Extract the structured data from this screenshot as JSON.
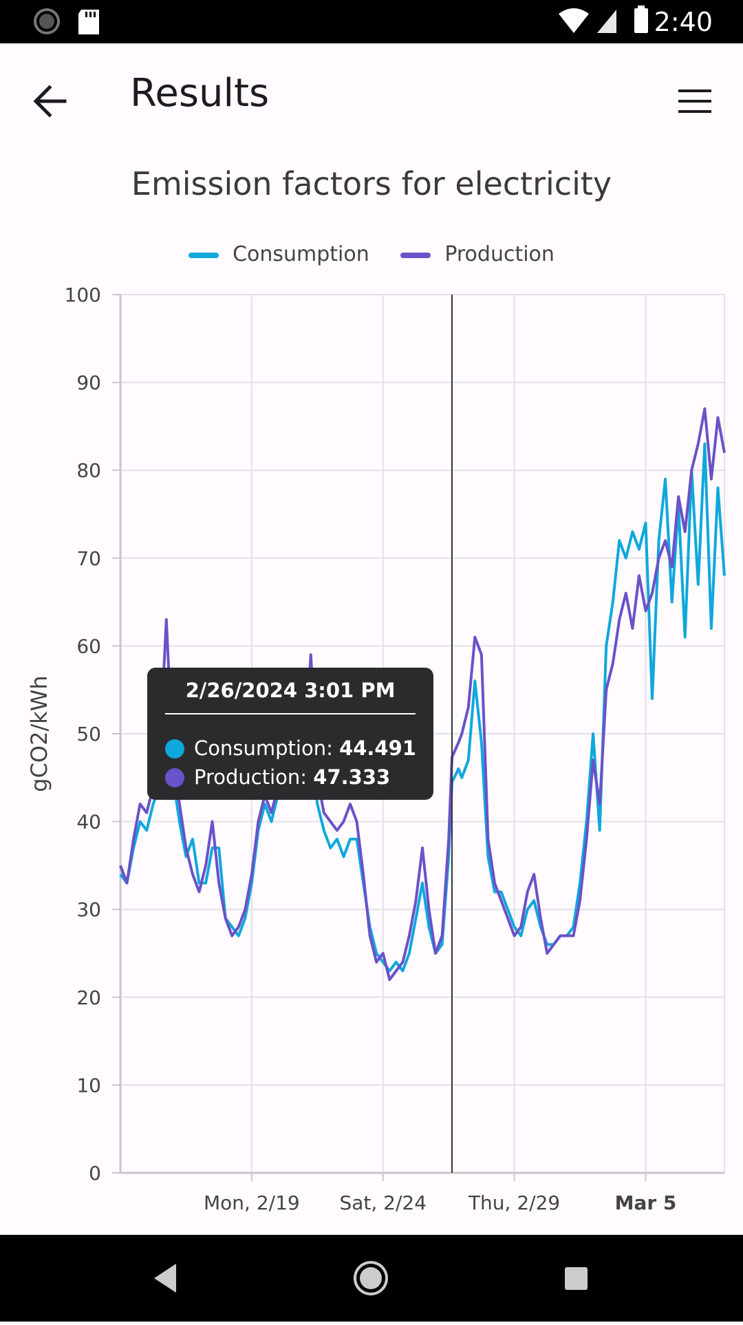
{
  "status_bar": {
    "time": "2:40"
  },
  "app_bar": {
    "title": "Results"
  },
  "chart_data": {
    "type": "line",
    "title": "Emission factors for electricity",
    "ylabel": "gCO2/kWh",
    "xlabel": "",
    "ylim": [
      0,
      100
    ],
    "yticks": [
      "0",
      "10",
      "20",
      "30",
      "40",
      "50",
      "60",
      "70",
      "80",
      "90",
      "100"
    ],
    "xticks": [
      {
        "date": "2024-02-19",
        "label": "Mon, 2/19",
        "bold": false
      },
      {
        "date": "2024-02-24",
        "label": "Sat, 2/24",
        "bold": false
      },
      {
        "date": "2024-02-29",
        "label": "Thu, 2/29",
        "bold": false
      },
      {
        "date": "2024-03-05",
        "label": "Mar 5",
        "bold": true
      }
    ],
    "xlim": [
      "2024-02-14",
      "2024-03-08"
    ],
    "grid": true,
    "legend_position": "top",
    "colors": {
      "consumption": "#0fa8dc",
      "production": "#6a52c8",
      "crosshair": "#333333"
    },
    "crosshair_date": "2024-02-26 15:01",
    "series": [
      {
        "name": "Consumption",
        "color": "#0fa8dc",
        "points": [
          [
            "2024-02-14 00:00",
            34
          ],
          [
            "2024-02-14 06:00",
            33
          ],
          [
            "2024-02-14 12:00",
            37
          ],
          [
            "2024-02-14 18:00",
            40
          ],
          [
            "2024-02-15 00:00",
            39
          ],
          [
            "2024-02-15 06:00",
            42
          ],
          [
            "2024-02-15 12:00",
            44
          ],
          [
            "2024-02-15 18:00",
            50
          ],
          [
            "2024-02-16 00:00",
            45
          ],
          [
            "2024-02-16 06:00",
            40
          ],
          [
            "2024-02-16 12:00",
            36
          ],
          [
            "2024-02-16 18:00",
            38
          ],
          [
            "2024-02-17 00:00",
            33
          ],
          [
            "2024-02-17 06:00",
            33
          ],
          [
            "2024-02-17 12:00",
            37
          ],
          [
            "2024-02-17 18:00",
            37
          ],
          [
            "2024-02-18 00:00",
            29
          ],
          [
            "2024-02-18 06:00",
            28
          ],
          [
            "2024-02-18 12:00",
            27
          ],
          [
            "2024-02-18 18:00",
            29
          ],
          [
            "2024-02-19 00:00",
            33
          ],
          [
            "2024-02-19 06:00",
            39
          ],
          [
            "2024-02-19 12:00",
            42
          ],
          [
            "2024-02-19 18:00",
            40
          ],
          [
            "2024-02-20 00:00",
            43
          ],
          [
            "2024-02-20 06:00",
            46
          ],
          [
            "2024-02-20 12:00",
            50
          ],
          [
            "2024-02-20 18:00",
            48
          ],
          [
            "2024-02-21 00:00",
            44
          ],
          [
            "2024-02-21 06:00",
            48
          ],
          [
            "2024-02-21 12:00",
            42
          ],
          [
            "2024-02-21 18:00",
            39
          ],
          [
            "2024-02-22 00:00",
            37
          ],
          [
            "2024-02-22 06:00",
            38
          ],
          [
            "2024-02-22 12:00",
            36
          ],
          [
            "2024-02-22 18:00",
            38
          ],
          [
            "2024-02-23 00:00",
            38
          ],
          [
            "2024-02-23 06:00",
            33
          ],
          [
            "2024-02-23 12:00",
            28
          ],
          [
            "2024-02-23 18:00",
            25
          ],
          [
            "2024-02-24 00:00",
            24
          ],
          [
            "2024-02-24 06:00",
            23
          ],
          [
            "2024-02-24 12:00",
            24
          ],
          [
            "2024-02-24 18:00",
            23
          ],
          [
            "2024-02-25 00:00",
            25
          ],
          [
            "2024-02-25 06:00",
            29
          ],
          [
            "2024-02-25 12:00",
            33
          ],
          [
            "2024-02-25 18:00",
            28
          ],
          [
            "2024-02-26 00:00",
            25
          ],
          [
            "2024-02-26 06:00",
            26
          ],
          [
            "2024-02-26 12:00",
            36
          ],
          [
            "2024-02-26 15:01",
            44.491
          ],
          [
            "2024-02-26 21:00",
            46
          ],
          [
            "2024-02-27 00:00",
            45
          ],
          [
            "2024-02-27 06:00",
            47
          ],
          [
            "2024-02-27 12:00",
            56
          ],
          [
            "2024-02-27 18:00",
            49
          ],
          [
            "2024-02-28 00:00",
            36
          ],
          [
            "2024-02-28 06:00",
            32
          ],
          [
            "2024-02-28 12:00",
            32
          ],
          [
            "2024-02-28 18:00",
            30
          ],
          [
            "2024-02-29 00:00",
            28
          ],
          [
            "2024-02-29 06:00",
            27
          ],
          [
            "2024-02-29 12:00",
            30
          ],
          [
            "2024-02-29 18:00",
            31
          ],
          [
            "2024-03-01 00:00",
            28
          ],
          [
            "2024-03-01 06:00",
            26
          ],
          [
            "2024-03-01 12:00",
            26
          ],
          [
            "2024-03-01 18:00",
            27
          ],
          [
            "2024-03-02 00:00",
            27
          ],
          [
            "2024-03-02 06:00",
            28
          ],
          [
            "2024-03-02 12:00",
            33
          ],
          [
            "2024-03-02 18:00",
            40
          ],
          [
            "2024-03-03 00:00",
            50
          ],
          [
            "2024-03-03 06:00",
            39
          ],
          [
            "2024-03-03 12:00",
            60
          ],
          [
            "2024-03-03 18:00",
            65
          ],
          [
            "2024-03-04 00:00",
            72
          ],
          [
            "2024-03-04 06:00",
            70
          ],
          [
            "2024-03-04 12:00",
            73
          ],
          [
            "2024-03-04 18:00",
            71
          ],
          [
            "2024-03-05 00:00",
            74
          ],
          [
            "2024-03-05 06:00",
            54
          ],
          [
            "2024-03-05 12:00",
            72
          ],
          [
            "2024-03-05 18:00",
            79
          ],
          [
            "2024-03-06 00:00",
            65
          ],
          [
            "2024-03-06 06:00",
            76
          ],
          [
            "2024-03-06 12:00",
            61
          ],
          [
            "2024-03-06 18:00",
            80
          ],
          [
            "2024-03-07 00:00",
            67
          ],
          [
            "2024-03-07 06:00",
            83
          ],
          [
            "2024-03-07 12:00",
            62
          ],
          [
            "2024-03-07 18:00",
            78
          ],
          [
            "2024-03-08 00:00",
            68
          ]
        ]
      },
      {
        "name": "Production",
        "color": "#6a52c8",
        "points": [
          [
            "2024-02-14 00:00",
            35
          ],
          [
            "2024-02-14 06:00",
            33
          ],
          [
            "2024-02-14 12:00",
            38
          ],
          [
            "2024-02-14 18:00",
            42
          ],
          [
            "2024-02-15 00:00",
            41
          ],
          [
            "2024-02-15 06:00",
            44
          ],
          [
            "2024-02-15 12:00",
            48
          ],
          [
            "2024-02-15 18:00",
            63
          ],
          [
            "2024-02-16 00:00",
            47
          ],
          [
            "2024-02-16 06:00",
            42
          ],
          [
            "2024-02-16 12:00",
            37
          ],
          [
            "2024-02-16 18:00",
            34
          ],
          [
            "2024-02-17 00:00",
            32
          ],
          [
            "2024-02-17 06:00",
            35
          ],
          [
            "2024-02-17 12:00",
            40
          ],
          [
            "2024-02-17 18:00",
            33
          ],
          [
            "2024-02-18 00:00",
            29
          ],
          [
            "2024-02-18 06:00",
            27
          ],
          [
            "2024-02-18 12:00",
            28
          ],
          [
            "2024-02-18 18:00",
            30
          ],
          [
            "2024-02-19 00:00",
            34
          ],
          [
            "2024-02-19 06:00",
            40
          ],
          [
            "2024-02-19 12:00",
            43
          ],
          [
            "2024-02-19 18:00",
            41
          ],
          [
            "2024-02-20 00:00",
            44
          ],
          [
            "2024-02-20 06:00",
            47
          ],
          [
            "2024-02-20 12:00",
            51
          ],
          [
            "2024-02-20 18:00",
            49
          ],
          [
            "2024-02-21 00:00",
            46
          ],
          [
            "2024-02-21 06:00",
            59
          ],
          [
            "2024-02-21 12:00",
            45
          ],
          [
            "2024-02-21 18:00",
            41
          ],
          [
            "2024-02-22 00:00",
            40
          ],
          [
            "2024-02-22 06:00",
            39
          ],
          [
            "2024-02-22 12:00",
            40
          ],
          [
            "2024-02-22 18:00",
            42
          ],
          [
            "2024-02-23 00:00",
            40
          ],
          [
            "2024-02-23 06:00",
            34
          ],
          [
            "2024-02-23 12:00",
            27
          ],
          [
            "2024-02-23 18:00",
            24
          ],
          [
            "2024-02-24 00:00",
            25
          ],
          [
            "2024-02-24 06:00",
            22
          ],
          [
            "2024-02-24 12:00",
            23
          ],
          [
            "2024-02-24 18:00",
            24
          ],
          [
            "2024-02-25 00:00",
            27
          ],
          [
            "2024-02-25 06:00",
            31
          ],
          [
            "2024-02-25 12:00",
            37
          ],
          [
            "2024-02-25 18:00",
            30
          ],
          [
            "2024-02-26 00:00",
            25
          ],
          [
            "2024-02-26 06:00",
            27
          ],
          [
            "2024-02-26 12:00",
            38
          ],
          [
            "2024-02-26 15:01",
            47.333
          ],
          [
            "2024-02-26 21:00",
            49
          ],
          [
            "2024-02-27 00:00",
            50
          ],
          [
            "2024-02-27 06:00",
            53
          ],
          [
            "2024-02-27 12:00",
            61
          ],
          [
            "2024-02-27 18:00",
            59
          ],
          [
            "2024-02-28 00:00",
            38
          ],
          [
            "2024-02-28 06:00",
            33
          ],
          [
            "2024-02-28 12:00",
            31
          ],
          [
            "2024-02-28 18:00",
            29
          ],
          [
            "2024-02-29 00:00",
            27
          ],
          [
            "2024-02-29 06:00",
            28
          ],
          [
            "2024-02-29 12:00",
            32
          ],
          [
            "2024-02-29 18:00",
            34
          ],
          [
            "2024-03-01 00:00",
            29
          ],
          [
            "2024-03-01 06:00",
            25
          ],
          [
            "2024-03-01 12:00",
            26
          ],
          [
            "2024-03-01 18:00",
            27
          ],
          [
            "2024-03-02 00:00",
            27
          ],
          [
            "2024-03-02 06:00",
            27
          ],
          [
            "2024-03-02 12:00",
            31
          ],
          [
            "2024-03-02 18:00",
            38
          ],
          [
            "2024-03-03 00:00",
            47
          ],
          [
            "2024-03-03 06:00",
            42
          ],
          [
            "2024-03-03 12:00",
            55
          ],
          [
            "2024-03-03 18:00",
            58
          ],
          [
            "2024-03-04 00:00",
            63
          ],
          [
            "2024-03-04 06:00",
            66
          ],
          [
            "2024-03-04 12:00",
            62
          ],
          [
            "2024-03-04 18:00",
            68
          ],
          [
            "2024-03-05 00:00",
            64
          ],
          [
            "2024-03-05 06:00",
            66
          ],
          [
            "2024-03-05 12:00",
            70
          ],
          [
            "2024-03-05 18:00",
            72
          ],
          [
            "2024-03-06 00:00",
            69
          ],
          [
            "2024-03-06 06:00",
            77
          ],
          [
            "2024-03-06 12:00",
            73
          ],
          [
            "2024-03-06 18:00",
            80
          ],
          [
            "2024-03-07 00:00",
            83
          ],
          [
            "2024-03-07 06:00",
            87
          ],
          [
            "2024-03-07 12:00",
            79
          ],
          [
            "2024-03-07 18:00",
            86
          ],
          [
            "2024-03-08 00:00",
            82
          ]
        ]
      }
    ],
    "tooltip": {
      "title": "2/26/2024 3:01 PM",
      "rows": [
        {
          "label": "Consumption:",
          "value": "44.491"
        },
        {
          "label": "Production:",
          "value": "47.333"
        }
      ]
    }
  }
}
